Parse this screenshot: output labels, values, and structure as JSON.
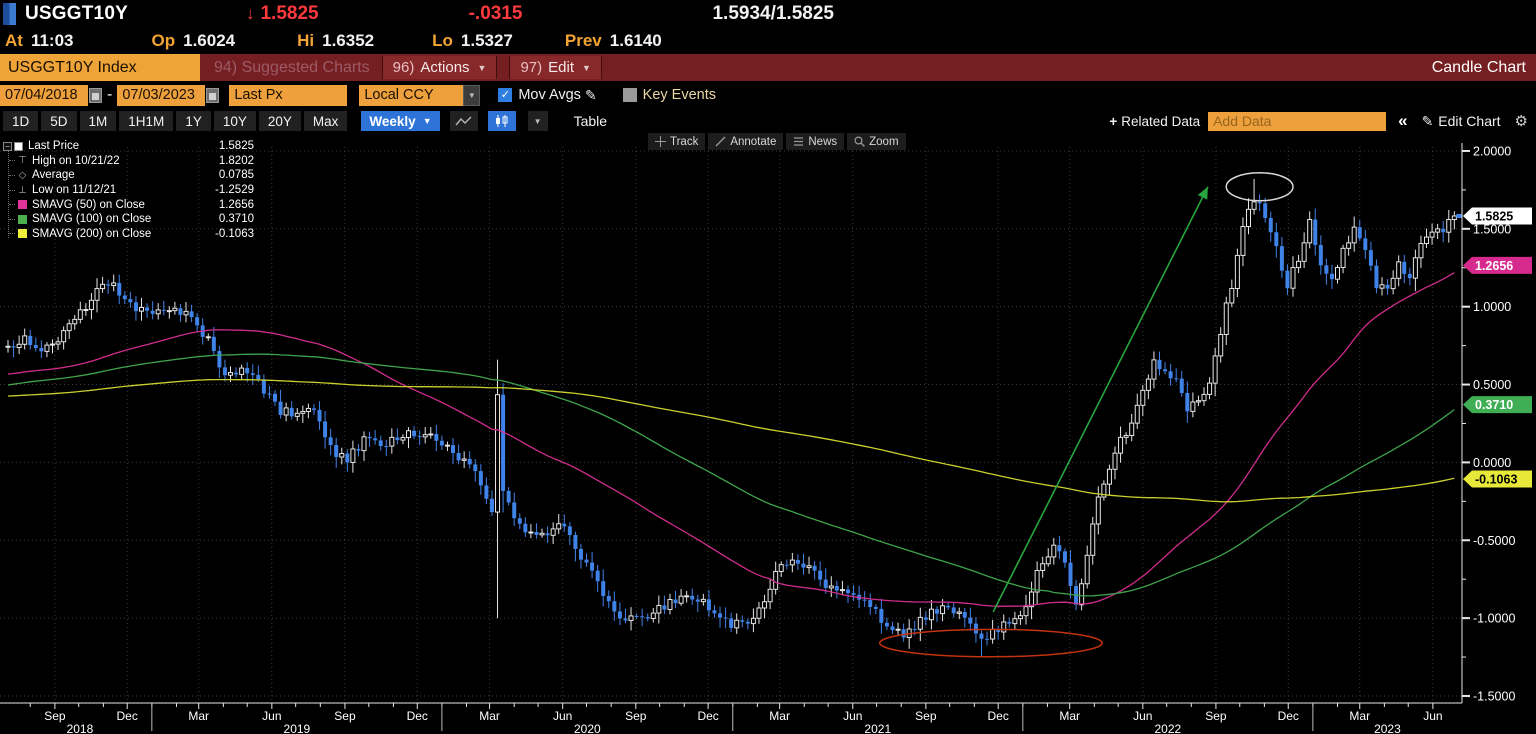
{
  "header": {
    "ticker": "USGGT10Y",
    "down_arrow": "↓",
    "last": "1.5825",
    "change": "-.0315",
    "bid_ask": "1.5934/1.5825",
    "at_label": "At",
    "at_time": "11:03",
    "op_label": "Op",
    "open": "1.6024",
    "hi_label": "Hi",
    "high": "1.6352",
    "lo_label": "Lo",
    "low": "1.5327",
    "prev_label": "Prev",
    "prev": "1.6140"
  },
  "menubar": {
    "security_button": "USGGT10Y Index",
    "suggested": "94) Suggested Charts",
    "actions_num": "96)",
    "actions": "Actions",
    "edit_num": "97)",
    "edit": "Edit",
    "chart_type": "Candle Chart"
  },
  "controls": {
    "date_from": "07/04/2018",
    "date_separator": "-",
    "date_to": "07/03/2023",
    "price_field": "Last Px",
    "currency": "Local CCY",
    "mov_avgs_label": "Mov Avgs",
    "mov_avgs_checked": true,
    "key_events_label": "Key Events",
    "key_events_checked": false
  },
  "toolbar": {
    "periods": [
      "1D",
      "5D",
      "1M",
      "1H1M",
      "1Y",
      "10Y",
      "20Y",
      "Max"
    ],
    "interval": "Weekly",
    "table_label": "Table",
    "related_data_label": "Related Data",
    "add_data_placeholder": "Add Data",
    "collapse_label": "«",
    "edit_chart_label": "Edit Chart"
  },
  "chart_tools": [
    "Track",
    "Annotate",
    "News",
    "Zoom"
  ],
  "legend": {
    "items": [
      {
        "kind": "square",
        "swatch": "#ffffff",
        "label": "Last Price",
        "value": "1.5825"
      },
      {
        "kind": "high",
        "label": "High on 10/21/22",
        "value": "1.8202"
      },
      {
        "kind": "avg",
        "label": "Average",
        "value": "0.0785"
      },
      {
        "kind": "low",
        "label": "Low on 11/12/21",
        "value": "-1.2529"
      },
      {
        "kind": "square",
        "swatch": "#e0349a",
        "label": "SMAVG (50)  on Close",
        "value": "1.2656"
      },
      {
        "kind": "square",
        "swatch": "#4cb04f",
        "label": "SMAVG (100)  on Close",
        "value": "0.3710"
      },
      {
        "kind": "square",
        "swatch": "#f0ee3c",
        "label": "SMAVG (200)  on Close",
        "value": "-0.1063"
      }
    ]
  },
  "chart_data": {
    "type": "candlestick",
    "symbol": "USGGT10Y Index",
    "interval": "Weekly",
    "x_start_date": "2018-07-04",
    "x_end_date": "2023-07-03",
    "weeks": 261,
    "ylim": [
      -1.5,
      2.0
    ],
    "y_major_step": 0.5,
    "y_minor_step": 0.25,
    "y_label_decimals": 4,
    "x_label_months": [
      3,
      6,
      9,
      12
    ],
    "years": [
      2018,
      2019,
      2020,
      2021,
      2022,
      2023
    ],
    "key_points": {
      "last": 1.5825,
      "high": {
        "date": "10/21/22",
        "value": 1.8202
      },
      "average": 0.0785,
      "low": {
        "date": "11/12/21",
        "value": -1.2529
      }
    },
    "first_open": 0.74,
    "jitter": 0.03,
    "close_anchors": [
      [
        0,
        0.72
      ],
      [
        3,
        0.8
      ],
      [
        6,
        0.74
      ],
      [
        9,
        0.8
      ],
      [
        12,
        0.92
      ],
      [
        15,
        1.05
      ],
      [
        18,
        1.16
      ],
      [
        20,
        1.1
      ],
      [
        22,
        1.02
      ],
      [
        24,
        0.98
      ],
      [
        27,
        0.96
      ],
      [
        30,
        0.99
      ],
      [
        33,
        0.93
      ],
      [
        36,
        0.78
      ],
      [
        38,
        0.62
      ],
      [
        40,
        0.56
      ],
      [
        43,
        0.6
      ],
      [
        46,
        0.46
      ],
      [
        49,
        0.33
      ],
      [
        52,
        0.31
      ],
      [
        55,
        0.34
      ],
      [
        57,
        0.18
      ],
      [
        59,
        0.06
      ],
      [
        61,
        0.02
      ],
      [
        63,
        0.1
      ],
      [
        65,
        0.17
      ],
      [
        67,
        0.11
      ],
      [
        70,
        0.15
      ],
      [
        72,
        0.21
      ],
      [
        74,
        0.16
      ],
      [
        76,
        0.16
      ],
      [
        79,
        0.1
      ],
      [
        82,
        0.0
      ],
      [
        85,
        -0.12
      ],
      [
        87,
        -0.3
      ],
      [
        88,
        0.42
      ],
      [
        89,
        -0.18
      ],
      [
        91,
        -0.38
      ],
      [
        94,
        -0.44
      ],
      [
        97,
        -0.46
      ],
      [
        99,
        -0.4
      ],
      [
        101,
        -0.47
      ],
      [
        103,
        -0.6
      ],
      [
        105,
        -0.72
      ],
      [
        107,
        -0.84
      ],
      [
        110,
        -0.98
      ],
      [
        113,
        -1.0
      ],
      [
        116,
        -0.96
      ],
      [
        119,
        -0.9
      ],
      [
        122,
        -0.86
      ],
      [
        125,
        -0.9
      ],
      [
        128,
        -1.02
      ],
      [
        131,
        -1.04
      ],
      [
        134,
        -1.0
      ],
      [
        136,
        -0.88
      ],
      [
        138,
        -0.72
      ],
      [
        141,
        -0.6
      ],
      [
        144,
        -0.67
      ],
      [
        147,
        -0.78
      ],
      [
        150,
        -0.81
      ],
      [
        153,
        -0.86
      ],
      [
        156,
        -0.95
      ],
      [
        158,
        -1.06
      ],
      [
        161,
        -1.1
      ],
      [
        164,
        -1.02
      ],
      [
        166,
        -0.96
      ],
      [
        169,
        -0.93
      ],
      [
        172,
        -1.0
      ],
      [
        175,
        -1.16
      ],
      [
        177,
        -1.1
      ],
      [
        180,
        -1.03
      ],
      [
        183,
        -0.92
      ],
      [
        185,
        -0.72
      ],
      [
        188,
        -0.52
      ],
      [
        190,
        -0.62
      ],
      [
        192,
        -0.94
      ],
      [
        194,
        -0.6
      ],
      [
        196,
        -0.22
      ],
      [
        198,
        -0.06
      ],
      [
        200,
        0.14
      ],
      [
        202,
        0.26
      ],
      [
        204,
        0.44
      ],
      [
        206,
        0.66
      ],
      [
        208,
        0.58
      ],
      [
        210,
        0.52
      ],
      [
        212,
        0.34
      ],
      [
        214,
        0.42
      ],
      [
        216,
        0.5
      ],
      [
        218,
        0.85
      ],
      [
        220,
        1.14
      ],
      [
        222,
        1.5
      ],
      [
        224,
        1.7
      ],
      [
        226,
        1.58
      ],
      [
        228,
        1.38
      ],
      [
        230,
        1.14
      ],
      [
        232,
        1.32
      ],
      [
        234,
        1.54
      ],
      [
        236,
        1.28
      ],
      [
        238,
        1.18
      ],
      [
        240,
        1.36
      ],
      [
        242,
        1.5
      ],
      [
        244,
        1.38
      ],
      [
        246,
        1.14
      ],
      [
        248,
        1.12
      ],
      [
        250,
        1.26
      ],
      [
        252,
        1.2
      ],
      [
        254,
        1.4
      ],
      [
        256,
        1.47
      ],
      [
        258,
        1.5
      ],
      [
        260,
        1.5825
      ]
    ],
    "pre_close_anchors": [
      [
        -200,
        0.42
      ],
      [
        -185,
        0.25
      ],
      [
        -170,
        0.35
      ],
      [
        -160,
        0.62
      ],
      [
        -150,
        0.7
      ],
      [
        -140,
        0.55
      ],
      [
        -130,
        0.3
      ],
      [
        -120,
        0.12
      ],
      [
        -110,
        0.02
      ],
      [
        -100,
        0.2
      ],
      [
        -90,
        0.42
      ],
      [
        -80,
        0.38
      ],
      [
        -70,
        0.5
      ],
      [
        -60,
        0.46
      ],
      [
        -50,
        0.52
      ],
      [
        -40,
        0.58
      ],
      [
        -30,
        0.52
      ],
      [
        -20,
        0.48
      ],
      [
        -10,
        0.62
      ],
      [
        -1,
        0.7
      ]
    ],
    "close_overrides": {
      "260": 1.5825
    },
    "hl_overrides": {
      "88": [
        0.66,
        -1.0
      ],
      "175": [
        null,
        -1.2529
      ],
      "224": [
        1.8202,
        null
      ]
    },
    "candle_up_color": "#e6e6e6",
    "candle_down_color": "#4083e8",
    "moving_averages": [
      {
        "name": "SMAVG (50) on Close",
        "window": 50,
        "color": "#cf2d8e",
        "last": 1.2656
      },
      {
        "name": "SMAVG (100) on Close",
        "window": 100,
        "color": "#3fa34d",
        "last": 0.371
      },
      {
        "name": "SMAVG (200) on Close",
        "window": 200,
        "color": "#c9cf2e",
        "last": -0.1063
      }
    ],
    "badges": [
      {
        "label": "1.5825",
        "value": 1.5825,
        "bg": "#ffffff",
        "fg": "#000000"
      },
      {
        "label": "1.2656",
        "value": 1.2656,
        "bg": "#d62a8c",
        "fg": "#ffffff"
      },
      {
        "label": "0.3710",
        "value": 0.371,
        "bg": "#3fae54",
        "fg": "#ffffff"
      },
      {
        "label": "-0.1063",
        "value": -0.1063,
        "bg": "#e8e83a",
        "fg": "#000000"
      }
    ],
    "annotations": [
      {
        "type": "ellipse",
        "color": "#c2330e",
        "cx_week": 176.7,
        "cy_value": -1.16,
        "rx_weeks": 20,
        "ry_value": 0.088
      },
      {
        "type": "ellipse",
        "color": "#d8d8d8",
        "cx_week": 225.0,
        "cy_value": 1.77,
        "rx_weeks": 6,
        "ry_value": 0.09
      },
      {
        "type": "arrow",
        "color": "#28a53c",
        "from_week": 177.1,
        "from_value": -0.96,
        "to_week": 215.7,
        "to_value": 1.77
      }
    ]
  }
}
